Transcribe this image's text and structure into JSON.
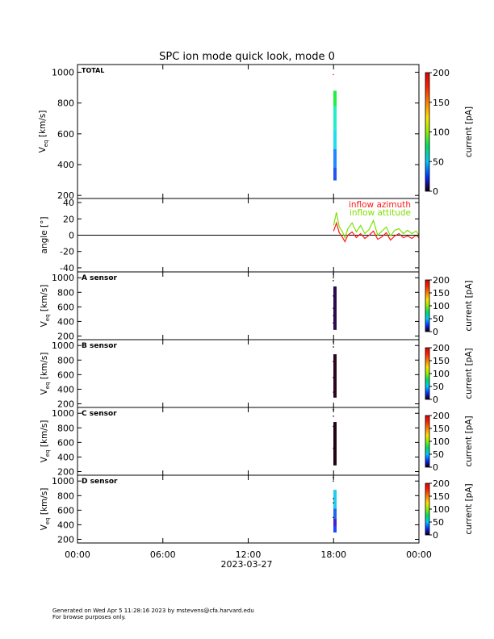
{
  "title": "SPC ion mode quick look, mode 0",
  "footer": {
    "line1": "Generated on Wed Apr  5 11:28:16 2023 by mstevens@cfa.harvard.edu",
    "line2": "For browse purposes only."
  },
  "chart_data": {
    "type": "heatmap",
    "title": "SPC ion mode quick look, mode 0",
    "xlabel": "2023-03-27",
    "x_tick_labels": [
      "00:00",
      "06:00",
      "12:00",
      "18:00",
      "00:00"
    ],
    "x_tick_hours": [
      0,
      6,
      12,
      18,
      24
    ],
    "xlim_hours": [
      0,
      24
    ],
    "colorbar": {
      "label": "current [pA]",
      "range": [
        0,
        200
      ],
      "colormap": "rainbow (black-blue-cyan-green-yellow-orange-red)",
      "ticks_main": [
        0,
        50,
        100,
        150,
        200
      ],
      "ticks_sensor": [
        0,
        50,
        100,
        150,
        200
      ]
    },
    "panels": [
      {
        "name": "TOTAL",
        "ylabel": "V_eq [km/s]",
        "ylim": [
          180,
          1050
        ],
        "y_ticks": [
          200,
          400,
          600,
          800,
          1000
        ],
        "observation_start_hour": 18.0,
        "observation_end_hour": 24.0,
        "spectrogram_bar": {
          "hour": 18.1,
          "v_min": 290,
          "v_max": 880,
          "colors_by_velocity": [
            {
              "v": 880,
              "color": "#22ee44"
            },
            {
              "v": 780,
              "color": "#22eecc"
            },
            {
              "v": 620,
              "color": "#22ddee"
            },
            {
              "v": 500,
              "color": "#2288ff"
            },
            {
              "v": 380,
              "color": "#2255ee"
            },
            {
              "v": 300,
              "color": "#33bbff"
            }
          ]
        },
        "scattered_points": [
          {
            "hour": 17.98,
            "v": 985,
            "color": "#ff2222"
          }
        ]
      },
      {
        "name": "",
        "ylabel": "angle [°]",
        "ylim": [
          -45,
          45
        ],
        "y_ticks": [
          -40,
          -20,
          0,
          20,
          40
        ],
        "series": [
          {
            "name": "inflow azimuth",
            "color": "#ff1a1a",
            "hours": [
              18.0,
              18.2,
              18.4,
              18.6,
              18.8,
              19.0,
              19.3,
              19.6,
              19.9,
              20.2,
              20.5,
              20.8,
              21.1,
              21.4,
              21.7,
              22.0,
              22.3,
              22.6,
              22.9,
              23.2,
              23.5,
              23.8,
              24.0
            ],
            "values": [
              5,
              15,
              3,
              -2,
              -8,
              0,
              4,
              -3,
              2,
              -4,
              0,
              5,
              -5,
              -2,
              3,
              -6,
              -1,
              2,
              -3,
              -1,
              -4,
              0,
              -3
            ]
          },
          {
            "name": "inflow attitude",
            "color": "#7ee000",
            "hours": [
              18.0,
              18.2,
              18.4,
              18.6,
              18.8,
              19.0,
              19.3,
              19.6,
              19.9,
              20.2,
              20.5,
              20.8,
              21.1,
              21.4,
              21.7,
              22.0,
              22.3,
              22.6,
              22.9,
              23.2,
              23.5,
              23.8,
              24.0
            ],
            "values": [
              12,
              28,
              10,
              5,
              -3,
              8,
              15,
              4,
              12,
              2,
              7,
              18,
              0,
              5,
              10,
              -1,
              6,
              8,
              2,
              6,
              2,
              5,
              0
            ]
          }
        ]
      },
      {
        "name": "A sensor",
        "ylabel": "V_eq [km/s]",
        "ylim": [
          150,
          1080
        ],
        "y_ticks": [
          200,
          400,
          600,
          800,
          1000
        ],
        "spectrogram_bar": {
          "hour": 18.1,
          "v_min": 290,
          "v_max": 880,
          "colors_by_velocity": [
            {
              "v": 880,
              "color": "#2b0a50"
            },
            {
              "v": 290,
              "color": "#2b0a50"
            }
          ]
        },
        "scattered_points": [
          {
            "hour": 17.98,
            "v": 1050
          },
          {
            "hour": 17.99,
            "v": 1000
          },
          {
            "hour": 17.98,
            "v": 960
          },
          {
            "hour": 17.99,
            "v": 750
          },
          {
            "hour": 17.99,
            "v": 580
          },
          {
            "hour": 18.0,
            "v": 480
          },
          {
            "hour": 17.99,
            "v": 380
          }
        ]
      },
      {
        "name": "B sensor",
        "ylabel": "V_eq [km/s]",
        "ylim": [
          150,
          1080
        ],
        "y_ticks": [
          200,
          400,
          600,
          800,
          1000
        ],
        "spectrogram_bar": {
          "hour": 18.1,
          "v_min": 290,
          "v_max": 880,
          "colors_by_velocity": [
            {
              "v": 880,
              "color": "#2a0620"
            },
            {
              "v": 290,
              "color": "#2a0620"
            }
          ]
        },
        "scattered_points": [
          {
            "hour": 17.98,
            "v": 1050
          },
          {
            "hour": 17.99,
            "v": 980
          },
          {
            "hour": 17.99,
            "v": 780
          },
          {
            "hour": 17.99,
            "v": 560
          },
          {
            "hour": 18.0,
            "v": 360
          }
        ]
      },
      {
        "name": "C sensor",
        "ylabel": "V_eq [km/s]",
        "ylim": [
          150,
          1080
        ],
        "y_ticks": [
          200,
          400,
          600,
          800,
          1000
        ],
        "spectrogram_bar": {
          "hour": 18.1,
          "v_min": 290,
          "v_max": 880,
          "colors_by_velocity": [
            {
              "v": 880,
              "color": "#220418"
            },
            {
              "v": 290,
              "color": "#220418"
            }
          ]
        },
        "scattered_points": [
          {
            "hour": 17.98,
            "v": 1050
          },
          {
            "hour": 17.99,
            "v": 960
          },
          {
            "hour": 17.99,
            "v": 820
          },
          {
            "hour": 18.0,
            "v": 520
          }
        ]
      },
      {
        "name": "D sensor",
        "ylabel": "V_eq [km/s]",
        "ylim": [
          150,
          1080
        ],
        "y_ticks": [
          200,
          400,
          600,
          800,
          1000
        ],
        "spectrogram_bar": {
          "hour": 18.1,
          "v_min": 290,
          "v_max": 880,
          "colors_by_velocity": [
            {
              "v": 880,
              "color": "#22ccee"
            },
            {
              "v": 720,
              "color": "#22ccee"
            },
            {
              "v": 620,
              "color": "#2266ee"
            },
            {
              "v": 480,
              "color": "#4422cc"
            },
            {
              "v": 380,
              "color": "#2244ff"
            },
            {
              "v": 300,
              "color": "#1a2299"
            }
          ]
        },
        "scattered_points": [
          {
            "hour": 17.98,
            "v": 1050
          },
          {
            "hour": 17.99,
            "v": 1000
          },
          {
            "hour": 17.99,
            "v": 760
          },
          {
            "hour": 18.0,
            "v": 700
          },
          {
            "hour": 17.99,
            "v": 500
          }
        ]
      }
    ]
  }
}
